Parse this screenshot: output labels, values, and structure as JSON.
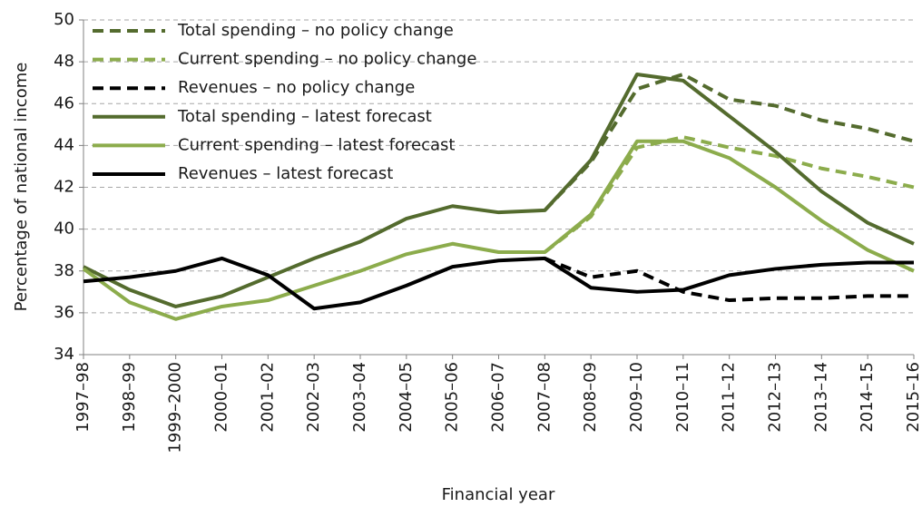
{
  "chart_data": {
    "type": "line",
    "x_label": "Financial year",
    "y_label": "Percentage of national income",
    "categories": [
      "1997–98",
      "1998–99",
      "1999–2000",
      "2000–01",
      "2001–02",
      "2002–03",
      "2003–04",
      "2004–05",
      "2005–06",
      "2006–07",
      "2007–08",
      "2008–09",
      "2009–10",
      "2010–11",
      "2011–12",
      "2012–13",
      "2013–14",
      "2014–15",
      "2015–16"
    ],
    "ylim": [
      34,
      50
    ],
    "yticks": [
      34,
      36,
      38,
      40,
      42,
      44,
      46,
      48,
      50
    ],
    "grid": true,
    "legend": "top-left",
    "series": [
      {
        "name": "Total spending – no policy change",
        "color": "#546b2e",
        "dashed": true,
        "values": [
          null,
          null,
          null,
          null,
          null,
          null,
          null,
          null,
          null,
          null,
          40.9,
          43.2,
          46.7,
          47.4,
          46.2,
          45.9,
          45.2,
          44.8,
          44.2
        ]
      },
      {
        "name": "Current spending – no policy change",
        "color": "#8cac4c",
        "dashed": true,
        "values": [
          null,
          null,
          null,
          null,
          null,
          null,
          null,
          null,
          null,
          null,
          38.9,
          40.6,
          43.9,
          44.4,
          43.9,
          43.5,
          42.9,
          42.5,
          42.0
        ]
      },
      {
        "name": "Revenues – no policy change",
        "color": "#000000",
        "dashed": true,
        "values": [
          null,
          null,
          null,
          null,
          null,
          null,
          null,
          null,
          null,
          null,
          38.6,
          37.7,
          38.0,
          37.0,
          36.6,
          36.7,
          36.7,
          36.8,
          36.8
        ]
      },
      {
        "name": "Total spending – latest forecast",
        "color": "#546b2e",
        "dashed": false,
        "values": [
          38.2,
          37.1,
          36.3,
          36.8,
          37.7,
          38.6,
          39.4,
          40.5,
          41.1,
          40.8,
          40.9,
          43.3,
          47.4,
          47.1,
          45.4,
          43.7,
          41.8,
          40.3,
          39.3
        ]
      },
      {
        "name": "Current spending – latest forecast",
        "color": "#8cac4c",
        "dashed": false,
        "values": [
          38.1,
          36.5,
          35.7,
          36.3,
          36.6,
          37.3,
          38.0,
          38.8,
          39.3,
          38.9,
          38.9,
          40.7,
          44.2,
          44.2,
          43.4,
          42.0,
          40.4,
          39.0,
          38.0
        ]
      },
      {
        "name": "Revenues – latest forecast",
        "color": "#000000",
        "dashed": false,
        "values": [
          37.5,
          37.7,
          38.0,
          38.6,
          37.8,
          36.2,
          36.5,
          37.3,
          38.2,
          38.5,
          38.6,
          37.2,
          37.0,
          37.1,
          37.8,
          38.1,
          38.3,
          38.4,
          38.4
        ]
      }
    ]
  }
}
